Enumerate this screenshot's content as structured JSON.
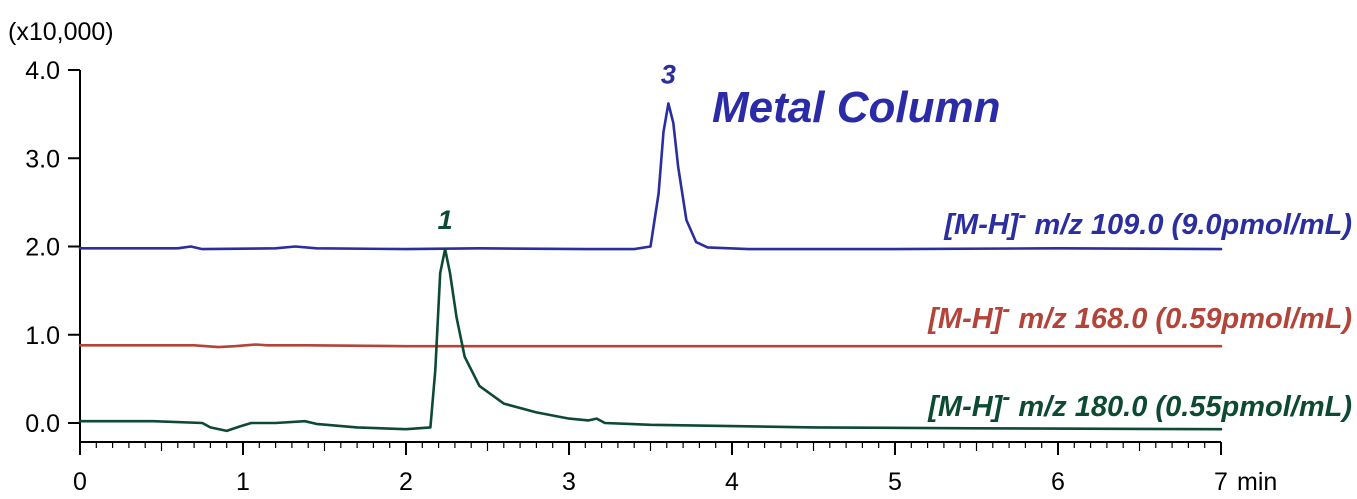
{
  "chart_data": {
    "type": "line",
    "title": "Metal Column",
    "y_scale_label": "(x10,000)",
    "x_unit_label": "min",
    "xlim": [
      0,
      7
    ],
    "ylim": [
      -0.25,
      4.0
    ],
    "x_ticks": [
      "0",
      "1",
      "2",
      "3",
      "4",
      "5",
      "6",
      "7"
    ],
    "y_ticks": [
      "0.0",
      "1.0",
      "2.0",
      "3.0",
      "4.0"
    ],
    "colors": {
      "blue": "#2A2E9E",
      "red": "#B3443A",
      "green": "#0E4A33",
      "title": "#2B2BA8"
    },
    "series": [
      {
        "name": "[M-H]- m/z 109.0 (9.0pmol/mL)",
        "label_main": "[M-H]",
        "label_sup": "-",
        "label_rest": " m/z 109.0 (9.0pmol/mL)",
        "color": "#2A2E9E",
        "peak_label": "3",
        "x": [
          0.0,
          0.6,
          0.68,
          0.75,
          1.2,
          1.32,
          1.45,
          2.0,
          2.45,
          3.1,
          3.4,
          3.5,
          3.55,
          3.58,
          3.61,
          3.64,
          3.67,
          3.72,
          3.78,
          3.85,
          4.1,
          5.0,
          6.0,
          7.0
        ],
        "y": [
          1.98,
          1.98,
          2.0,
          1.97,
          1.98,
          2.0,
          1.98,
          1.97,
          1.98,
          1.97,
          1.97,
          2.0,
          2.6,
          3.3,
          3.62,
          3.4,
          2.9,
          2.3,
          2.05,
          1.99,
          1.97,
          1.97,
          1.98,
          1.97
        ]
      },
      {
        "name": "[M-H]- m/z 168.0 (0.59pmol/mL)",
        "label_main": "[M-H]",
        "label_sup": "-",
        "label_rest": " m/z 168.0 (0.59pmol/mL)",
        "color": "#B3443A",
        "x": [
          0.0,
          0.7,
          0.85,
          0.95,
          1.08,
          1.15,
          1.4,
          2.0,
          3.0,
          4.0,
          5.0,
          6.0,
          7.0
        ],
        "y": [
          0.88,
          0.88,
          0.86,
          0.87,
          0.89,
          0.88,
          0.88,
          0.87,
          0.87,
          0.87,
          0.87,
          0.87,
          0.87
        ],
        "peak_label": ""
      },
      {
        "name": "[M-H]- m/z 180.0 (0.55pmol/mL)",
        "label_main": "[M-H]",
        "label_sup": "-",
        "label_rest": " m/z 180.0 (0.55pmol/mL)",
        "color": "#0E4A33",
        "peak_label": "1",
        "x": [
          0.0,
          0.45,
          0.75,
          0.8,
          0.9,
          0.98,
          1.05,
          1.2,
          1.38,
          1.45,
          1.7,
          2.0,
          2.15,
          2.18,
          2.21,
          2.24,
          2.27,
          2.31,
          2.36,
          2.45,
          2.6,
          2.8,
          3.0,
          3.12,
          3.17,
          3.22,
          3.5,
          4.5,
          5.5,
          7.0
        ],
        "y": [
          0.02,
          0.02,
          0.0,
          -0.05,
          -0.09,
          -0.04,
          0.0,
          0.0,
          0.02,
          -0.01,
          -0.05,
          -0.07,
          -0.05,
          0.6,
          1.7,
          1.97,
          1.7,
          1.2,
          0.75,
          0.42,
          0.22,
          0.12,
          0.05,
          0.03,
          0.05,
          0.0,
          -0.02,
          -0.05,
          -0.06,
          -0.07
        ]
      }
    ]
  }
}
